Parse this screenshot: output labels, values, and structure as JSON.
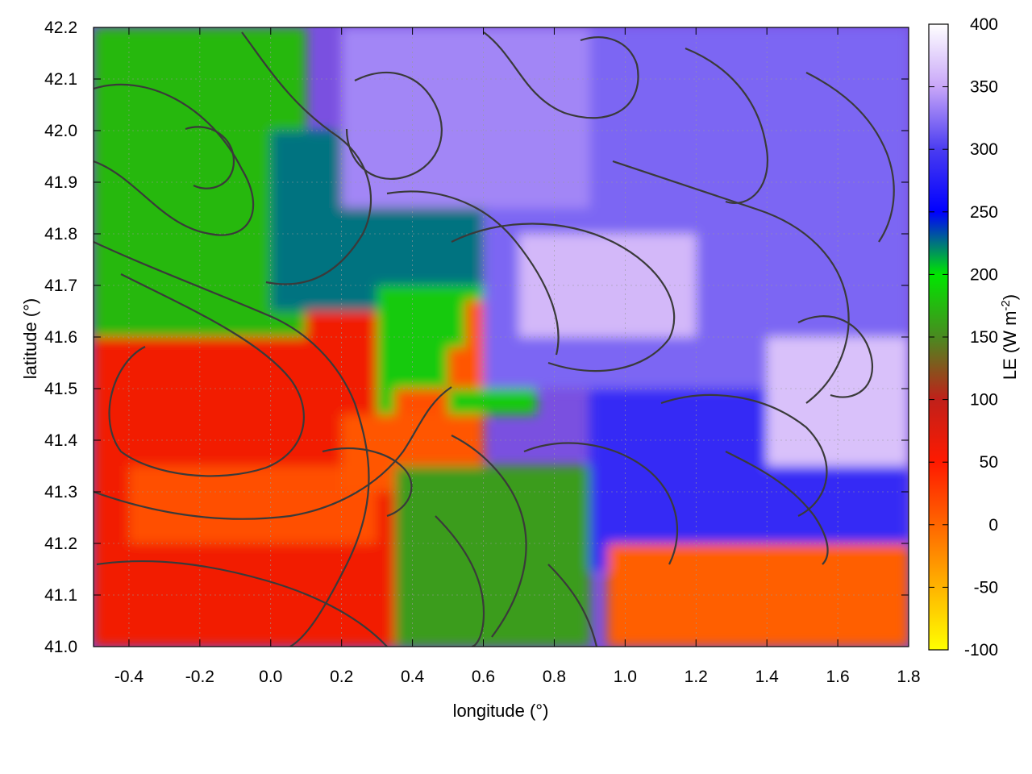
{
  "chart_data": {
    "type": "heatmap",
    "xlabel": "longitude (°)",
    "ylabel": "latitude (°)",
    "colorbar_label": "LE (W m",
    "colorbar_label_sup": "-2",
    "colorbar_label_close": ")",
    "xlim": [
      -0.5,
      1.8
    ],
    "ylim": [
      41.0,
      42.2
    ],
    "clim": [
      -100,
      400
    ],
    "x_ticks": [
      "-0.4",
      "-0.2",
      "0.0",
      "0.2",
      "0.4",
      "0.6",
      "0.8",
      "1.0",
      "1.2",
      "1.4",
      "1.6",
      "1.8"
    ],
    "x_tick_values": [
      -0.4,
      -0.2,
      0.0,
      0.2,
      0.4,
      0.6,
      0.8,
      1.0,
      1.2,
      1.4,
      1.6,
      1.8
    ],
    "y_ticks": [
      "41.0",
      "41.1",
      "41.2",
      "41.3",
      "41.4",
      "41.5",
      "41.6",
      "41.7",
      "41.8",
      "41.9",
      "42.0",
      "42.1",
      "42.2"
    ],
    "y_tick_values": [
      41.0,
      41.1,
      41.2,
      41.3,
      41.4,
      41.5,
      41.6,
      41.7,
      41.8,
      41.9,
      42.0,
      42.1,
      42.2
    ],
    "colorbar_ticks": [
      "400",
      "350",
      "300",
      "250",
      "200",
      "150",
      "100",
      "50",
      "0",
      "-50",
      "-100"
    ],
    "colorbar_tick_values": [
      400,
      350,
      300,
      250,
      200,
      150,
      100,
      50,
      0,
      -50,
      -100
    ],
    "colormap": [
      {
        "value": -100,
        "color": "#ffff00"
      },
      {
        "value": -50,
        "color": "#ffb400"
      },
      {
        "value": 0,
        "color": "#ff6600"
      },
      {
        "value": 50,
        "color": "#ff1a00"
      },
      {
        "value": 100,
        "color": "#c0201a"
      },
      {
        "value": 150,
        "color": "#4a8a20"
      },
      {
        "value": 200,
        "color": "#00e600"
      },
      {
        "value": 250,
        "color": "#0000ff"
      },
      {
        "value": 300,
        "color": "#4a3cf0"
      },
      {
        "value": 350,
        "color": "#c8a6f8"
      },
      {
        "value": 400,
        "color": "#ffffff"
      }
    ],
    "grid": true,
    "field_note_sea_value": 5,
    "field_regions": [
      {
        "lon": [
          -0.5,
          0.35
        ],
        "lat": [
          41.0,
          41.9
        ],
        "value": 60
      },
      {
        "lon": [
          -0.4,
          0.3
        ],
        "lat": [
          41.2,
          41.35
        ],
        "value": 15
      },
      {
        "lon": [
          -0.5,
          0.1
        ],
        "lat": [
          41.6,
          42.2
        ],
        "value": 175
      },
      {
        "lon": [
          0.0,
          0.6
        ],
        "lat": [
          41.65,
          42.0
        ],
        "value": 225
      },
      {
        "lon": [
          0.3,
          0.75
        ],
        "lat": [
          41.45,
          41.7
        ],
        "value": 185
      },
      {
        "lon": [
          0.55,
          0.75
        ],
        "lat": [
          41.58,
          41.67
        ],
        "value": 10
      },
      {
        "lon": [
          0.5,
          0.6
        ],
        "lat": [
          41.5,
          41.58
        ],
        "value": 10
      },
      {
        "lon": [
          0.35,
          0.5
        ],
        "lat": [
          41.4,
          41.5
        ],
        "value": 15
      },
      {
        "lon": [
          0.2,
          0.6
        ],
        "lat": [
          41.3,
          41.45
        ],
        "value": 10
      },
      {
        "lon": [
          0.35,
          0.9
        ],
        "lat": [
          41.0,
          41.35
        ],
        "value": 160
      },
      {
        "lon": [
          0.9,
          1.8
        ],
        "lat": [
          41.15,
          41.5
        ],
        "value": 285
      },
      {
        "lon": [
          0.6,
          1.8
        ],
        "lat": [
          41.5,
          42.2
        ],
        "value": 320
      },
      {
        "lon": [
          0.2,
          0.9
        ],
        "lat": [
          41.85,
          42.2
        ],
        "value": 335
      },
      {
        "lon": [
          0.7,
          1.2
        ],
        "lat": [
          41.6,
          41.8
        ],
        "value": 360
      },
      {
        "lon": [
          1.4,
          1.8
        ],
        "lat": [
          41.35,
          41.6
        ],
        "value": 365
      },
      {
        "lon": [
          0.95,
          1.8
        ],
        "lat": [
          41.0,
          41.2
        ],
        "value": 5
      }
    ]
  }
}
